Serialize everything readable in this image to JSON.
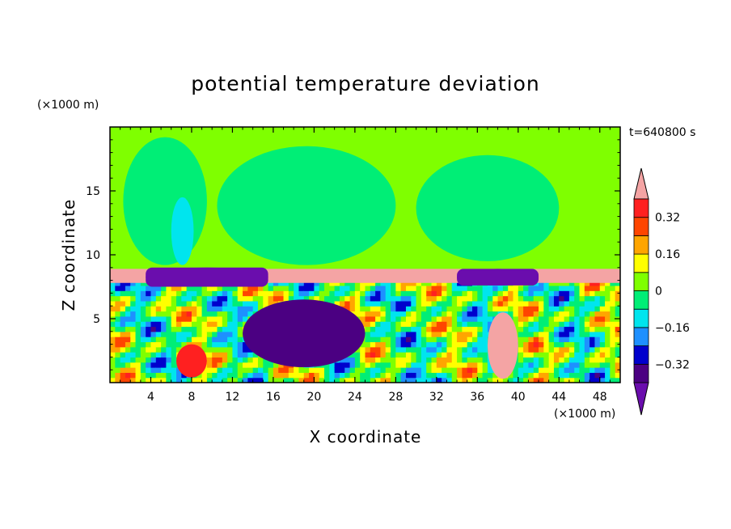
{
  "chart_data": {
    "type": "heatmap",
    "title": "potential temperature deviation",
    "time_label": "t=640800 s",
    "xlabel": "X coordinate",
    "ylabel": "Z coordinate",
    "x_unit": "(×1000 m)",
    "y_unit": "(×1000 m)",
    "xlim": [
      0,
      50
    ],
    "ylim": [
      0,
      20
    ],
    "x_ticks": [
      "4",
      "8",
      "12",
      "16",
      "20",
      "24",
      "28",
      "32",
      "36",
      "40",
      "44",
      "48"
    ],
    "x_tick_values": [
      4,
      8,
      12,
      16,
      20,
      24,
      28,
      32,
      36,
      40,
      44,
      48
    ],
    "y_ticks": [
      "5",
      "10",
      "15"
    ],
    "y_tick_values": [
      5,
      10,
      15
    ],
    "colorbar": {
      "labels": [
        "0.32",
        "0.16",
        "0",
        "−0.16",
        "−0.32"
      ],
      "label_values": [
        0.32,
        0.16,
        0,
        -0.16,
        -0.32
      ],
      "levels": [
        -0.4,
        -0.32,
        -0.24,
        -0.16,
        -0.08,
        0,
        0.08,
        0.16,
        0.24,
        0.32,
        0.4
      ],
      "colors": [
        "#6a0dad",
        "#4b0082",
        "#0000cd",
        "#1e90ff",
        "#00e5ee",
        "#00ee76",
        "#7fff00",
        "#ffff00",
        "#ffa500",
        "#ff4500",
        "#ff2020",
        "#f4a4a4"
      ],
      "extend": "both"
    },
    "regions": [
      {
        "name": "upper-background",
        "x": [
          0,
          50
        ],
        "z": [
          8.9,
          20
        ],
        "value": 0.04
      },
      {
        "name": "green-patch-1",
        "x": [
          1.3,
          9.5
        ],
        "z": [
          9.2,
          19.2
        ],
        "value": -0.04
      },
      {
        "name": "green-patch-2",
        "x": [
          10.5,
          28
        ],
        "z": [
          9.2,
          18.5
        ],
        "value": -0.04
      },
      {
        "name": "green-patch-3",
        "x": [
          30,
          44
        ],
        "z": [
          9.5,
          17.8
        ],
        "value": -0.04
      },
      {
        "name": "cyan-streak",
        "x": [
          6,
          8.2
        ],
        "z": [
          9.2,
          14.5
        ],
        "value": -0.12
      },
      {
        "name": "inversion-layer",
        "x": [
          0,
          50
        ],
        "z": [
          7.8,
          8.9
        ],
        "value": 0.45
      },
      {
        "name": "purple-blob-left",
        "x": [
          3.5,
          15.5
        ],
        "z": [
          7.5,
          9.0
        ],
        "value": -0.45
      },
      {
        "name": "purple-blob-right",
        "x": [
          34,
          42
        ],
        "z": [
          7.6,
          8.9
        ],
        "value": -0.45
      },
      {
        "name": "warm-core-right",
        "x": [
          37,
          40
        ],
        "z": [
          0.3,
          5.5
        ],
        "value": 0.45
      },
      {
        "name": "warm-core-left",
        "x": [
          6.5,
          9.5
        ],
        "z": [
          0.4,
          3.0
        ],
        "value": 0.36
      },
      {
        "name": "cold-band-mid",
        "x": [
          13,
          25
        ],
        "z": [
          1.2,
          6.5
        ],
        "value": -0.36
      }
    ]
  }
}
